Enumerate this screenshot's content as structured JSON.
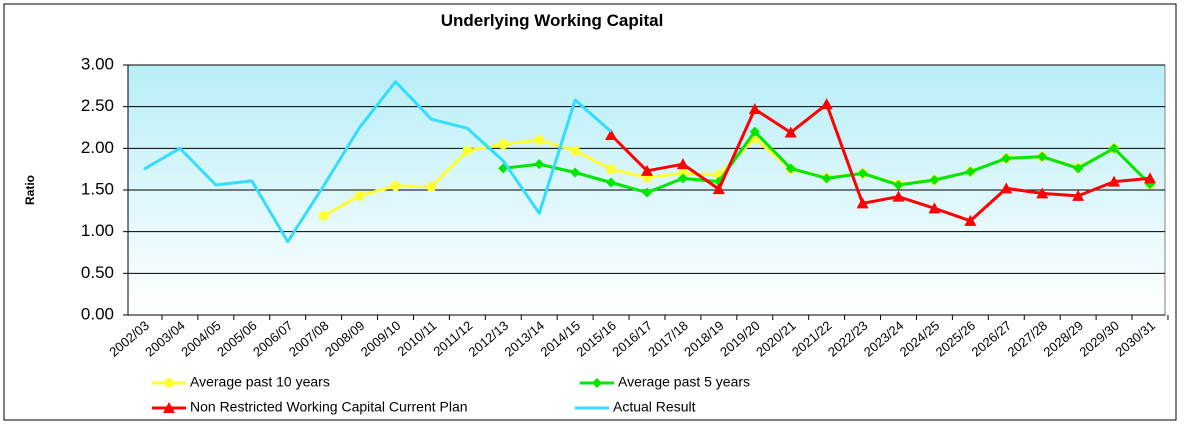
{
  "chart_data": {
    "type": "line",
    "title": "Underlying Working Capital",
    "y_label": "Ratio",
    "categories": [
      "2002/03",
      "2003/04",
      "2004/05",
      "2005/06",
      "2006/07",
      "2007/08",
      "2008/09",
      "2009/10",
      "2010/11",
      "2011/12",
      "2012/13",
      "2013/14",
      "2014/15",
      "2015/16",
      "2016/17",
      "2017/18",
      "2018/19",
      "2019/20",
      "2020/21",
      "2021/22",
      "2022/23",
      "2023/24",
      "2024/25",
      "2025/26",
      "2026/27",
      "2027/28",
      "2028/29",
      "2029/30",
      "2030/31"
    ],
    "series": [
      {
        "name": "Average past 10 years",
        "color": "#ffff33",
        "marker": "circle",
        "values": [
          null,
          null,
          null,
          null,
          null,
          1.19,
          1.43,
          1.55,
          1.54,
          1.97,
          2.05,
          2.1,
          1.97,
          1.75,
          1.65,
          1.7,
          1.68,
          2.12,
          1.75,
          1.65,
          1.7,
          1.57,
          1.62,
          1.72,
          1.88,
          1.9,
          1.77,
          2.0,
          1.57
        ]
      },
      {
        "name": "Average past 5 years",
        "color": "#00e600",
        "marker": "diamond",
        "values": [
          null,
          null,
          null,
          null,
          null,
          null,
          null,
          null,
          null,
          null,
          1.76,
          1.81,
          1.71,
          1.59,
          1.47,
          1.64,
          1.6,
          2.2,
          1.76,
          1.64,
          1.7,
          1.56,
          1.62,
          1.72,
          1.88,
          1.9,
          1.76,
          2.0,
          1.57
        ]
      },
      {
        "name": "Non Restricted Working Capital Current Plan",
        "color": "#ff0000",
        "marker": "triangle",
        "values": [
          null,
          null,
          null,
          null,
          null,
          null,
          null,
          null,
          null,
          null,
          null,
          null,
          null,
          2.16,
          1.73,
          1.81,
          1.51,
          2.47,
          2.19,
          2.53,
          1.34,
          1.42,
          1.28,
          1.13,
          1.52,
          1.46,
          1.43,
          1.6,
          1.64
        ]
      },
      {
        "name": "Actual Result",
        "color": "#33ddff",
        "values": [
          1.75,
          2.0,
          1.56,
          1.61,
          0.88,
          1.55,
          2.25,
          2.8,
          2.35,
          2.24,
          1.85,
          1.22,
          2.58,
          2.2,
          null,
          null,
          null,
          null,
          null,
          null,
          null,
          null,
          null,
          null,
          null,
          null,
          null,
          null,
          null
        ]
      }
    ],
    "ylim": [
      0,
      3
    ],
    "yticks": [
      {
        "value": 0,
        "label": "0.00"
      },
      {
        "value": 0.5,
        "label": "0.50"
      },
      {
        "value": 1,
        "label": "1.00"
      },
      {
        "value": 1.5,
        "label": "1.50"
      },
      {
        "value": 2,
        "label": "2.00"
      },
      {
        "value": 2.5,
        "label": "2.50"
      },
      {
        "value": 3,
        "label": "3.00"
      }
    ],
    "grid": true,
    "legend": "bottom"
  }
}
